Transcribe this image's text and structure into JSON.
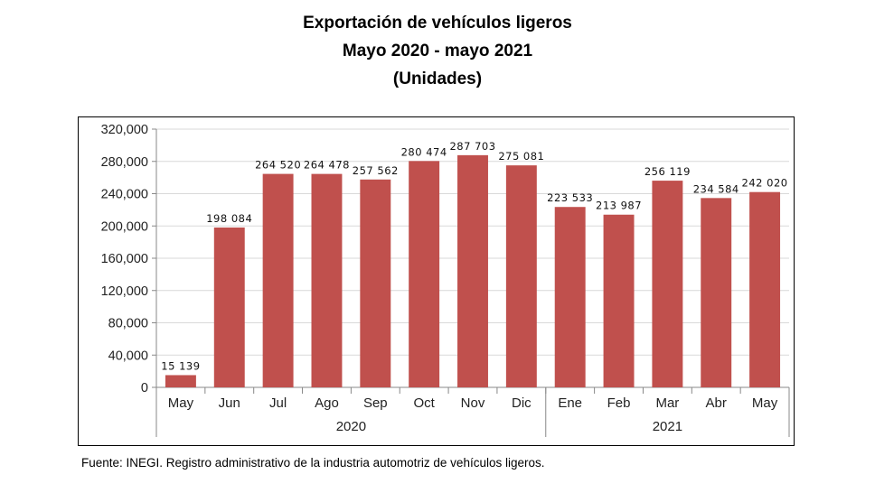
{
  "chart_data": {
    "type": "bar",
    "title": "Exportación de vehículos ligeros",
    "subtitle": "Mayo 2020 - mayo 2021",
    "units": "(Unidades)",
    "categories": [
      "May",
      "Jun",
      "Jul",
      "Ago",
      "Sep",
      "Oct",
      "Nov",
      "Dic",
      "Ene",
      "Feb",
      "Mar",
      "Abr",
      "May"
    ],
    "values": [
      15139,
      198084,
      264520,
      264478,
      257562,
      280474,
      287703,
      275081,
      223533,
      213987,
      256119,
      234584,
      242020
    ],
    "value_labels": [
      "15 139",
      "198 084",
      "264 520",
      "264 478",
      "257 562",
      "280 474",
      "287 703",
      "275 081",
      "223 533",
      "213 987",
      "256 119",
      "234 584",
      "242 020"
    ],
    "year_groups": [
      {
        "label": "2020",
        "start": 0,
        "end": 7
      },
      {
        "label": "2021",
        "start": 8,
        "end": 12
      }
    ],
    "ylim": [
      0,
      320000
    ],
    "yticks": [
      0,
      40000,
      80000,
      120000,
      160000,
      200000,
      240000,
      280000,
      320000
    ],
    "ytick_labels": [
      "0",
      "40,000",
      "80,000",
      "120,000",
      "160,000",
      "200,000",
      "240,000",
      "280,000",
      "320,000"
    ],
    "xlabel": "",
    "ylabel": "",
    "grid": true,
    "bar_color": "#c0504d",
    "grid_color": "#d9d9d9"
  },
  "source": "Fuente: INEGI. Registro administrativo de la industria automotriz de vehículos ligeros."
}
